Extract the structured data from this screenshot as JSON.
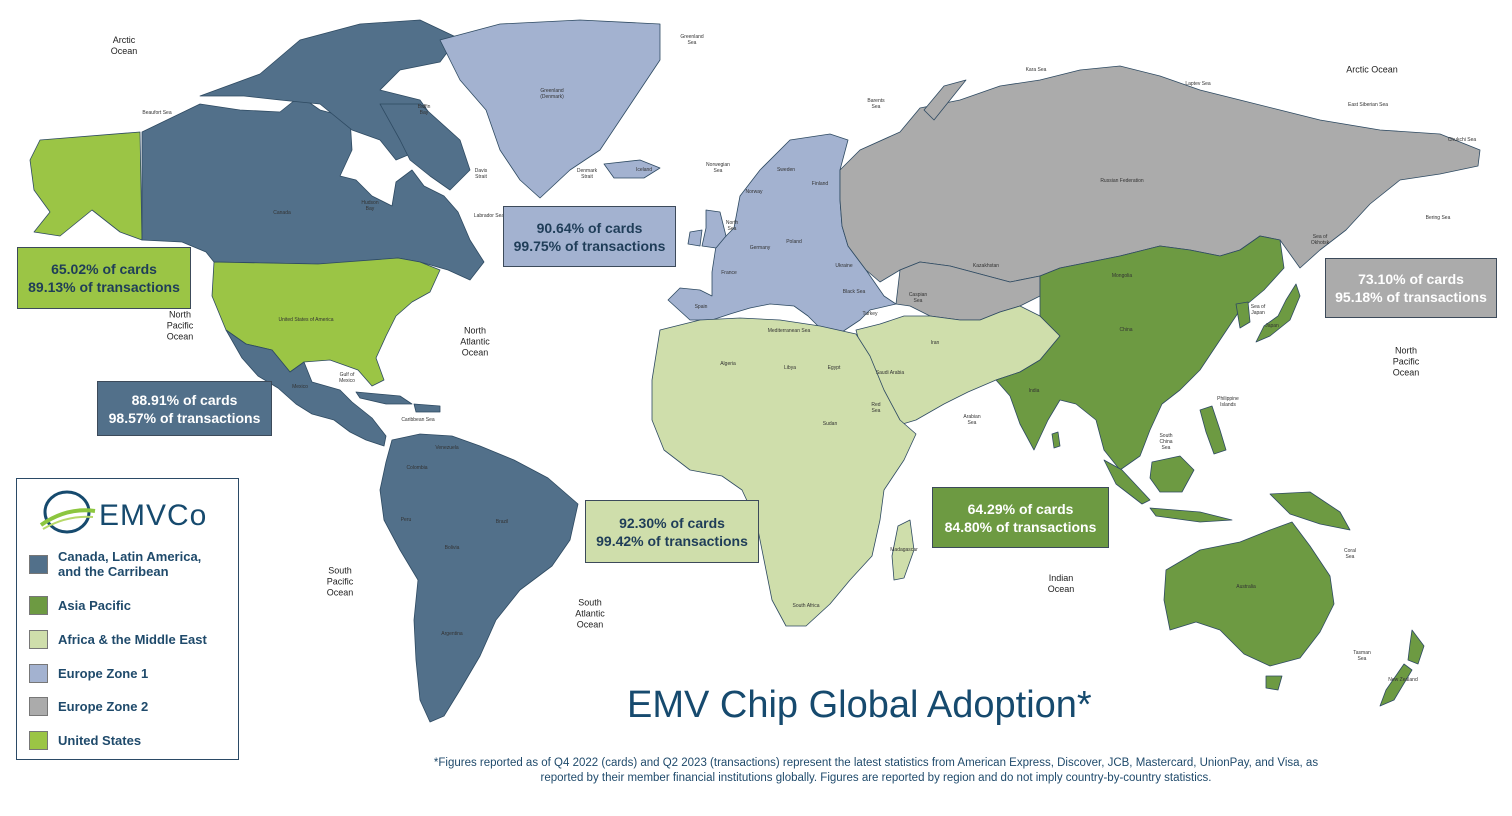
{
  "title": "EMV Chip Global Adoption*",
  "footnote": "*Figures reported as of Q4 2022 (cards) and Q2 2023 (transactions) represent the latest statistics from American Express, Discover, JCB, Mastercard, UnionPay, and Visa, as reported by their member financial institutions globally. Figures are reported by region and do not imply country-by-country statistics.",
  "logo": {
    "text": "EMVCo"
  },
  "colors": {
    "canada_latam": "#52708a",
    "asia_pacific": "#6d9a42",
    "africa_me": "#cfdeab",
    "europe1": "#a3b2d0",
    "europe2": "#ababab",
    "usa": "#9bc545",
    "ocean": "#ffffff",
    "brand": "#164a6e"
  },
  "legend": [
    {
      "label": "Canada, Latin America,\nand the Carribean",
      "color": "#52708a"
    },
    {
      "label": "Asia Pacific",
      "color": "#6d9a42"
    },
    {
      "label": "Africa & the Middle East",
      "color": "#cfdeab"
    },
    {
      "label": "Europe Zone 1",
      "color": "#a3b2d0"
    },
    {
      "label": "Europe Zone 2",
      "color": "#ababab"
    },
    {
      "label": "United States",
      "color": "#9bc545"
    }
  ],
  "stats": {
    "usa": {
      "cards": "65.02% of cards",
      "transactions": "89.13% of transactions"
    },
    "canada_latam": {
      "cards": "88.91% of cards",
      "transactions": "98.57% of transactions"
    },
    "europe1": {
      "cards": "90.64% of cards",
      "transactions": "99.75% of transactions"
    },
    "europe2": {
      "cards": "73.10% of cards",
      "transactions": "95.18% of transactions"
    },
    "africa_me": {
      "cards": "92.30% of cards",
      "transactions": "99.42% of transactions"
    },
    "asia_pacific": {
      "cards": "64.29% of cards",
      "transactions": "84.80% of transactions"
    }
  },
  "oceans": {
    "arctic_w": "Arctic\nOcean",
    "arctic_e": "Arctic Ocean",
    "north_pacific_w": "North\nPacific\nOcean",
    "north_pacific_e": "North\nPacific\nOcean",
    "north_atlantic": "North\nAtlantic\nOcean",
    "south_pacific": "South\nPacific\nOcean",
    "south_atlantic": "South\nAtlantic\nOcean",
    "indian": "Indian\nOcean",
    "arabian_sea": "Arabian\nSea",
    "beaufort_sea": "Beaufort Sea",
    "baffin_bay": "Baffin\nBay",
    "hudson_bay": "Hudson\nBay",
    "davis_strait": "Davis\nStrait",
    "labrador_sea": "Labrador Sea",
    "greenland_sea": "Greenland\nSea",
    "denmark_strait": "Denmark\nStrait",
    "norwegian_sea": "Norwegian\nSea",
    "north_sea": "North\nSea",
    "barents_sea": "Barents\nSea",
    "kara_sea": "Kara Sea",
    "laptev_sea": "Laptev Sea",
    "east_siberian_sea": "East Siberian Sea",
    "chukchi_sea": "Chukchi Sea",
    "bering_sea": "Bering Sea",
    "sea_of_okhotsk": "Sea of\nOkhotsk",
    "sea_of_japan": "Sea of\nJapan",
    "south_china_sea": "South\nChina\nSea",
    "coral_sea": "Coral\nSea",
    "tasman_sea": "Tasman\nSea",
    "red_sea": "Red\nSea",
    "gulf_of_mexico": "Gulf of\nMexico",
    "caribbean_sea": "Caribbean Sea",
    "mediterranean_sea": "Mediterranean Sea",
    "black_sea": "Black Sea",
    "caspian_sea": "Caspian\nSea"
  },
  "country_labels": {
    "canada": "Canada",
    "usa": "United States of America",
    "mexico": "Mexico",
    "greenland": "Greenland\n(Denmark)",
    "iceland": "Iceland",
    "russia": "Russian Federation",
    "kazakhstan": "Kazakhstan",
    "mongolia": "Mongolia",
    "china": "China",
    "india": "India",
    "japan": "Japan",
    "australia": "Australia",
    "brazil": "Brazil",
    "argentina": "Argentina",
    "peru": "Peru",
    "bolivia": "Bolivia",
    "colombia": "Colombia",
    "venezuela": "Venezuela",
    "algeria": "Algeria",
    "libya": "Libya",
    "egypt": "Egypt",
    "sudan": "Sudan",
    "saudi_arabia": "Saudi Arabia",
    "iran": "Iran",
    "south_africa": "South Africa",
    "madagascar": "Madagascar",
    "france": "France",
    "spain": "Spain",
    "germany": "Germany",
    "poland": "Poland",
    "ukraine": "Ukraine",
    "turkey": "Turkey",
    "sweden": "Sweden",
    "norway": "Norway",
    "finland": "Finland",
    "new_zealand": "New Zealand",
    "philippine_islands": "Philippine\nIslands"
  }
}
